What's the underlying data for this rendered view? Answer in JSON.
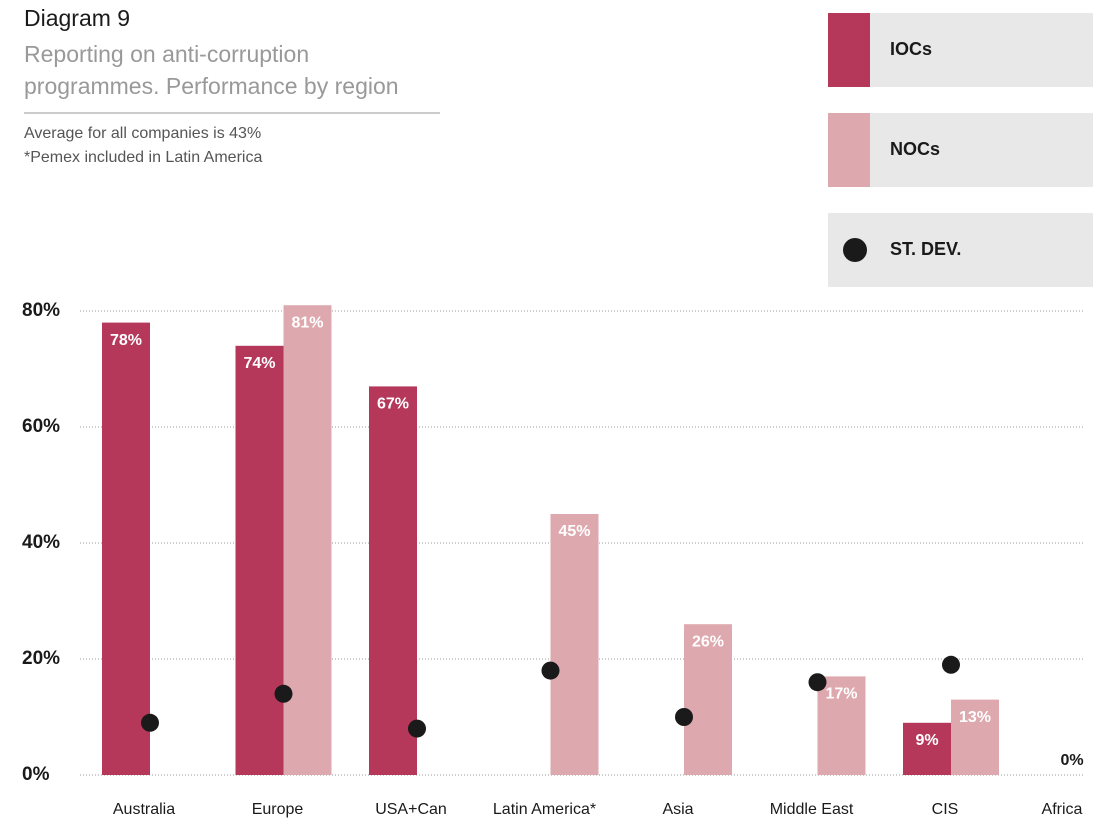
{
  "chart_data": {
    "type": "bar",
    "title": "Diagram 9",
    "subtitle": [
      "Reporting on anti-corruption",
      "programmes. Performance by region"
    ],
    "notes": [
      "Average for all companies is 43%",
      "*Pemex included in Latin America"
    ],
    "categories": [
      "Australia",
      "Europe",
      "USA+Can",
      "Latin America*",
      "Asia",
      "Middle East",
      "CIS",
      "Africa"
    ],
    "series": [
      {
        "name": "IOCs",
        "color": "#b5385b",
        "values": [
          78,
          74,
          67,
          null,
          null,
          null,
          9,
          null
        ],
        "value_labels": [
          "78%",
          "74%",
          "67%",
          null,
          null,
          null,
          "9%",
          null
        ]
      },
      {
        "name": "NOCs",
        "color": "#dea9ae",
        "values": [
          null,
          81,
          null,
          45,
          26,
          17,
          13,
          0
        ],
        "value_labels": [
          null,
          "81%",
          null,
          "45%",
          "26%",
          "17%",
          "13%",
          "0%"
        ]
      },
      {
        "name": "ST. DEV.",
        "color": "#1a1a1a",
        "type": "scatter",
        "values": [
          9,
          14,
          8,
          18,
          10,
          16,
          19,
          null
        ]
      }
    ],
    "ylim": [
      0,
      80
    ],
    "yticks": [
      {
        "value": 0,
        "label": "0%"
      },
      {
        "value": 20,
        "label": "20%"
      },
      {
        "value": 40,
        "label": "40%"
      },
      {
        "value": 60,
        "label": "60%"
      },
      {
        "value": 80,
        "label": "80%"
      }
    ],
    "grid": true,
    "legend": "top-right"
  }
}
